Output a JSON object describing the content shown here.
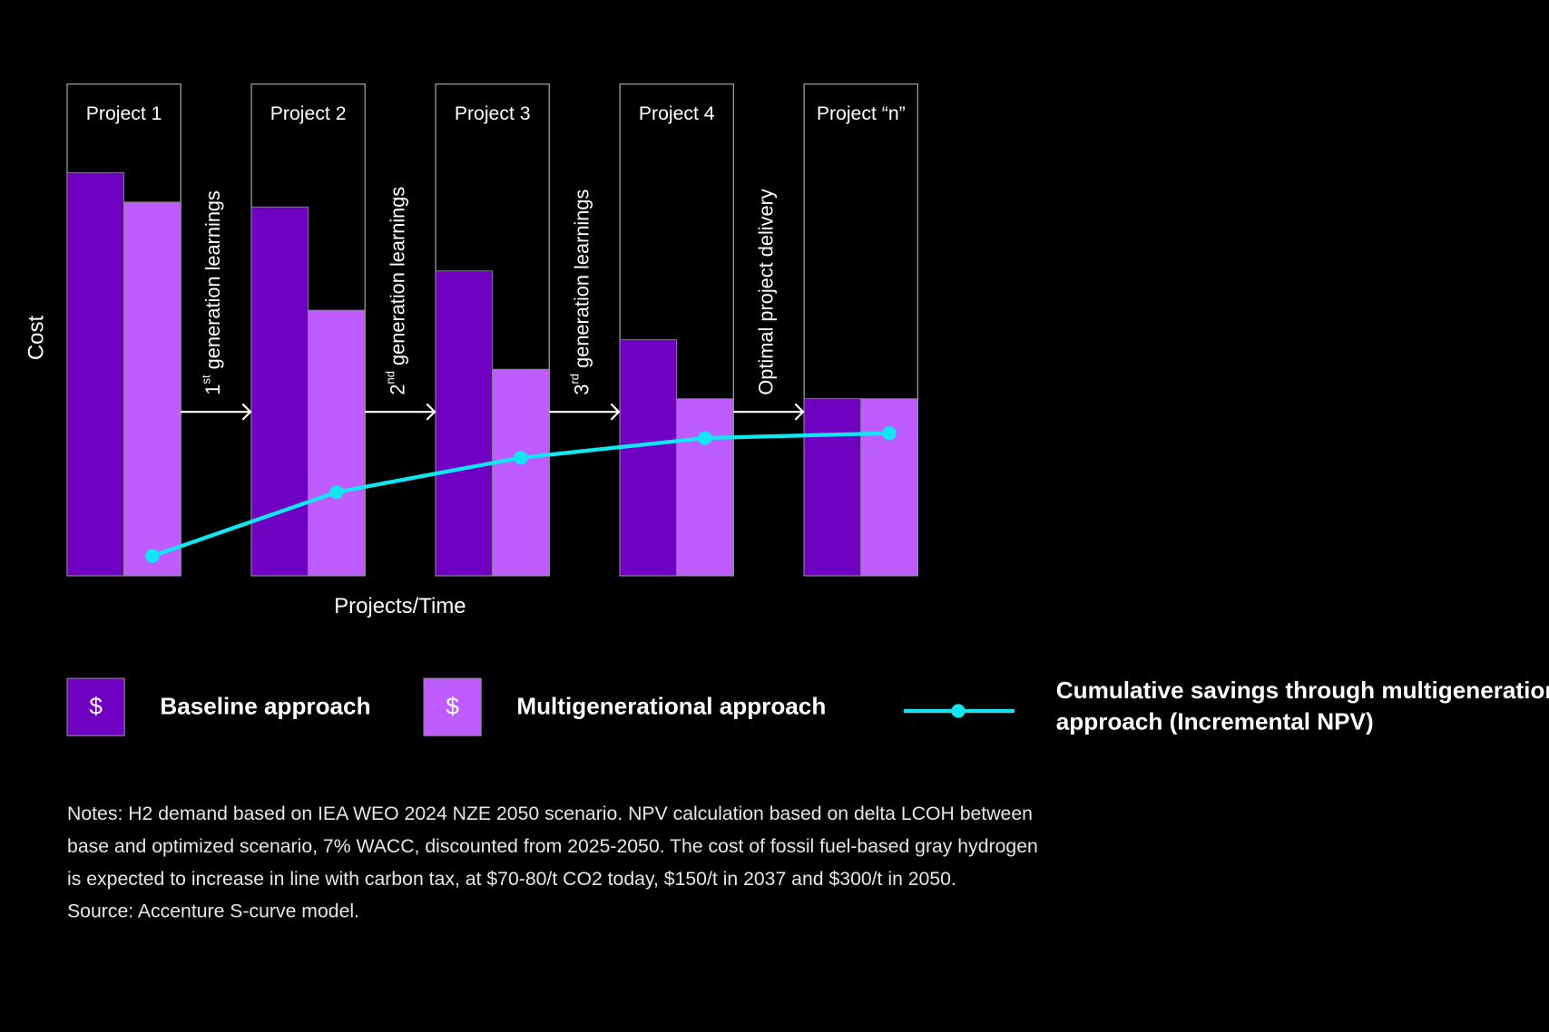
{
  "chart_data": {
    "type": "bar-line",
    "categories": [
      "Project 1",
      "Project 2",
      "Project 3",
      "Project 4",
      "Project “n”"
    ],
    "ylabel": "Cost",
    "xlabel": "Projects/Time",
    "ylim": [
      0,
      100
    ],
    "annotations": [
      {
        "number": "1",
        "suffix": "st",
        "text": " generation learnings"
      },
      {
        "number": "2",
        "suffix": "nd",
        "text": " generation learnings"
      },
      {
        "number": "3",
        "suffix": "rd",
        "text": " generation learnings"
      },
      {
        "text": "Optimal project delivery"
      }
    ],
    "legend_symbol": "$",
    "series": [
      {
        "name": "Baseline approach",
        "type": "bar",
        "color": "#7000c2",
        "values": [
          82,
          75,
          62,
          48,
          36
        ]
      },
      {
        "name": "Multigenerational approach",
        "type": "bar",
        "color": "#bf5cff",
        "values": [
          76,
          54,
          42,
          36,
          36
        ]
      },
      {
        "name": "Cumulative savings through multigenerational approach (Incremental NPV)",
        "type": "line",
        "color": "#12e6f2",
        "values": [
          4,
          17,
          24,
          28,
          29
        ]
      }
    ]
  },
  "notes": [
    "Notes: H2 demand based on IEA WEO 2024 NZE 2050 scenario. NPV calculation based on delta LCOH between",
    "base and optimized scenario, 7% WACC, discounted from 2025-2050. The cost of fossil fuel-based gray hydrogen",
    "is expected to increase in line with carbon tax, at $70-80/t CO2 today, $150/t in 2037 and $300/t in 2050.",
    "Source: Accenture S-curve model."
  ]
}
